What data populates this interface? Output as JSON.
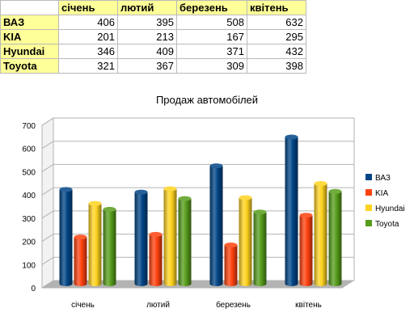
{
  "table": {
    "columns": [
      "січень",
      "лютий",
      "березень",
      "квітень"
    ],
    "rows": [
      {
        "label": "ВАЗ",
        "values": [
          "406",
          "395",
          "508",
          "632"
        ]
      },
      {
        "label": "KIA",
        "values": [
          "201",
          "213",
          "167",
          "295"
        ]
      },
      {
        "label": "Hyundai",
        "values": [
          "346",
          "409",
          "371",
          "432"
        ]
      },
      {
        "label": "Toyota",
        "values": [
          "321",
          "367",
          "309",
          "398"
        ]
      }
    ]
  },
  "chart_data": {
    "type": "bar",
    "title": "Продаж автомобілей",
    "categories": [
      "січень",
      "лютий",
      "березень",
      "квітень"
    ],
    "series": [
      {
        "name": "ВАЗ",
        "values": [
          406,
          395,
          508,
          632
        ],
        "color": "#004586"
      },
      {
        "name": "KIA",
        "values": [
          201,
          213,
          167,
          295
        ],
        "color": "#ff420e"
      },
      {
        "name": "Hyundai",
        "values": [
          346,
          409,
          371,
          432
        ],
        "color": "#ffd320"
      },
      {
        "name": "Toyota",
        "values": [
          321,
          367,
          309,
          398
        ],
        "color": "#579d1c"
      }
    ],
    "ylim": [
      0,
      700
    ],
    "yticks": [
      "0",
      "100",
      "200",
      "300",
      "400",
      "500",
      "600",
      "700"
    ],
    "grid": true,
    "legend": "right",
    "xlabel": "",
    "ylabel": ""
  }
}
